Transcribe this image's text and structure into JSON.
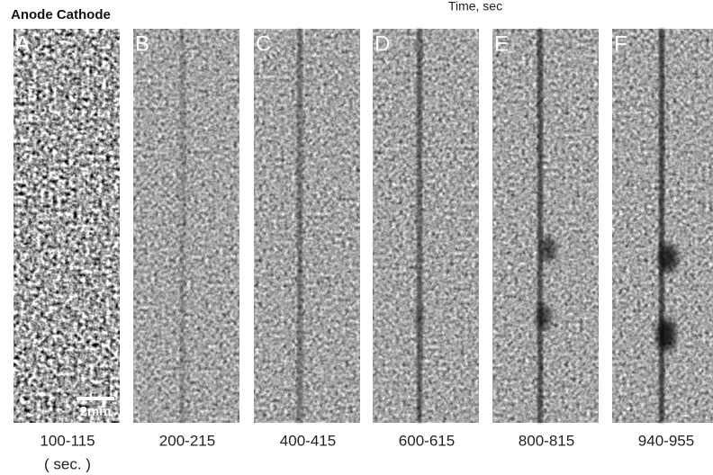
{
  "header": {
    "left_label": "Anode Cathode",
    "axis_label": "Time, sec"
  },
  "panels": [
    {
      "letter": "A",
      "time": "100-115"
    },
    {
      "letter": "B",
      "time": "200-215"
    },
    {
      "letter": "C",
      "time": "400-415"
    },
    {
      "letter": "D",
      "time": "600-615"
    },
    {
      "letter": "E",
      "time": "800-815"
    },
    {
      "letter": "F",
      "time": "940-955"
    }
  ],
  "unit_label": "( sec. )",
  "scale_bar": "2mm"
}
